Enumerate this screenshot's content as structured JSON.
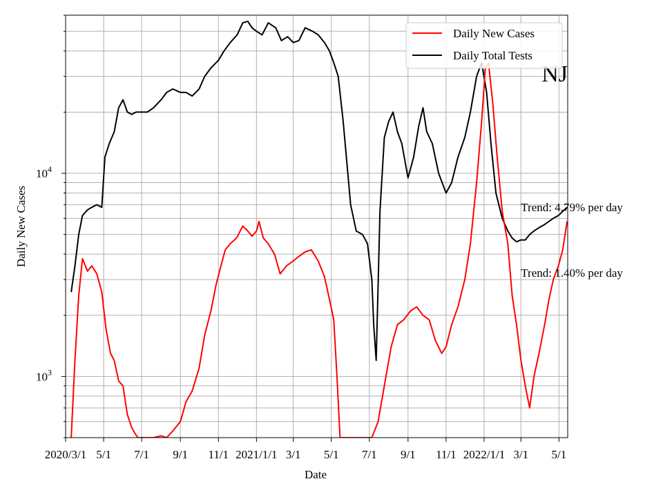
{
  "chart_data": {
    "type": "line",
    "title": "",
    "state_label": "NJ",
    "xlabel": "Date",
    "ylabel": "Daily New Cases",
    "y_scale": "log",
    "ylim": [
      500,
      60000
    ],
    "xlim": [
      "2020-03-01",
      "2022-05-15"
    ],
    "grid": true,
    "legend_position": "top-right",
    "x_ticks": [
      {
        "date": "2020-03-01",
        "label": "2020/3/1"
      },
      {
        "date": "2020-05-01",
        "label": "5/1"
      },
      {
        "date": "2020-07-01",
        "label": "7/1"
      },
      {
        "date": "2020-09-01",
        "label": "9/1"
      },
      {
        "date": "2020-11-01",
        "label": "11/1"
      },
      {
        "date": "2021-01-01",
        "label": "2021/1/1"
      },
      {
        "date": "2021-03-01",
        "label": "3/1"
      },
      {
        "date": "2021-05-01",
        "label": "5/1"
      },
      {
        "date": "2021-07-01",
        "label": "7/1"
      },
      {
        "date": "2021-09-01",
        "label": "9/1"
      },
      {
        "date": "2021-11-01",
        "label": "11/1"
      },
      {
        "date": "2022-01-01",
        "label": "2022/1/1"
      },
      {
        "date": "2022-03-01",
        "label": "3/1"
      },
      {
        "date": "2022-05-01",
        "label": "5/1"
      }
    ],
    "y_ticks": [
      {
        "value": 1000,
        "base": "10",
        "exp": "3"
      },
      {
        "value": 10000,
        "base": "10",
        "exp": "4"
      }
    ],
    "series": [
      {
        "name": "Daily New Cases",
        "color": "#ff0000",
        "x": [
          "2020-03-10",
          "2020-03-16",
          "2020-03-22",
          "2020-03-28",
          "2020-04-05",
          "2020-04-12",
          "2020-04-20",
          "2020-04-28",
          "2020-05-05",
          "2020-05-12",
          "2020-05-18",
          "2020-05-25",
          "2020-06-01",
          "2020-06-08",
          "2020-06-15",
          "2020-06-21",
          "2020-06-25",
          "2020-07-20",
          "2020-08-01",
          "2020-08-10",
          "2020-08-20",
          "2020-09-01",
          "2020-09-10",
          "2020-09-20",
          "2020-10-01",
          "2020-10-10",
          "2020-10-20",
          "2020-10-28",
          "2020-11-05",
          "2020-11-12",
          "2020-11-20",
          "2020-11-30",
          "2020-12-10",
          "2020-12-18",
          "2020-12-25",
          "2021-01-01",
          "2021-01-05",
          "2021-01-12",
          "2021-01-20",
          "2021-01-30",
          "2021-02-08",
          "2021-02-18",
          "2021-03-01",
          "2021-03-10",
          "2021-03-20",
          "2021-03-30",
          "2021-04-10",
          "2021-04-20",
          "2021-04-28",
          "2021-05-05",
          "2021-05-10",
          "2021-05-15",
          "2021-05-20",
          "2021-06-20",
          "2021-07-05",
          "2021-07-15",
          "2021-07-25",
          "2021-08-05",
          "2021-08-15",
          "2021-08-25",
          "2021-09-05",
          "2021-09-15",
          "2021-09-25",
          "2021-10-05",
          "2021-10-15",
          "2021-10-25",
          "2021-11-01",
          "2021-11-10",
          "2021-11-20",
          "2021-12-01",
          "2021-12-10",
          "2021-12-20",
          "2021-12-28",
          "2022-01-03",
          "2022-01-08",
          "2022-01-15",
          "2022-01-22",
          "2022-01-30",
          "2022-02-08",
          "2022-02-15",
          "2022-02-22",
          "2022-03-01",
          "2022-03-08",
          "2022-03-15",
          "2022-03-22",
          "2022-03-30",
          "2022-04-08",
          "2022-04-15",
          "2022-04-22",
          "2022-04-30",
          "2022-05-07",
          "2022-05-14"
        ],
        "values": [
          500,
          1200,
          2500,
          3800,
          3300,
          3500,
          3200,
          2600,
          1700,
          1300,
          1200,
          950,
          900,
          650,
          560,
          520,
          500,
          500,
          510,
          500,
          540,
          600,
          750,
          850,
          1100,
          1600,
          2100,
          2800,
          3500,
          4200,
          4500,
          4800,
          5500,
          5200,
          4900,
          5200,
          5800,
          4800,
          4500,
          4000,
          3200,
          3500,
          3700,
          3900,
          4100,
          4200,
          3700,
          3100,
          2400,
          1900,
          1000,
          500,
          500,
          500,
          500,
          600,
          900,
          1400,
          1800,
          1900,
          2100,
          2200,
          2000,
          1900,
          1500,
          1300,
          1400,
          1800,
          2200,
          3000,
          4500,
          9000,
          18000,
          33000,
          35000,
          22000,
          12000,
          6500,
          4500,
          2500,
          1800,
          1200,
          900,
          700,
          1000,
          1300,
          1800,
          2400,
          3000,
          3500,
          4200,
          5800
        ]
      },
      {
        "name": "Daily Total Tests",
        "color": "#000000",
        "x": [
          "2020-03-10",
          "2020-03-16",
          "2020-03-22",
          "2020-03-28",
          "2020-04-05",
          "2020-04-12",
          "2020-04-20",
          "2020-04-28",
          "2020-05-03",
          "2020-05-10",
          "2020-05-18",
          "2020-05-25",
          "2020-06-01",
          "2020-06-08",
          "2020-06-15",
          "2020-06-22",
          "2020-07-01",
          "2020-07-10",
          "2020-07-20",
          "2020-08-01",
          "2020-08-10",
          "2020-08-20",
          "2020-09-01",
          "2020-09-10",
          "2020-09-20",
          "2020-10-01",
          "2020-10-10",
          "2020-10-20",
          "2020-11-01",
          "2020-11-10",
          "2020-11-20",
          "2020-12-01",
          "2020-12-10",
          "2020-12-18",
          "2020-12-25",
          "2021-01-01",
          "2021-01-10",
          "2021-01-20",
          "2021-02-01",
          "2021-02-10",
          "2021-02-20",
          "2021-03-01",
          "2021-03-10",
          "2021-03-20",
          "2021-04-01",
          "2021-04-10",
          "2021-04-20",
          "2021-04-28",
          "2021-05-05",
          "2021-05-12",
          "2021-05-20",
          "2021-06-01",
          "2021-06-10",
          "2021-06-20",
          "2021-06-28",
          "2021-07-05",
          "2021-07-08",
          "2021-07-12",
          "2021-07-18",
          "2021-07-25",
          "2021-08-01",
          "2021-08-08",
          "2021-08-15",
          "2021-08-22",
          "2021-09-01",
          "2021-09-10",
          "2021-09-18",
          "2021-09-25",
          "2021-10-01",
          "2021-10-10",
          "2021-10-20",
          "2021-11-01",
          "2021-11-10",
          "2021-11-20",
          "2021-12-01",
          "2021-12-10",
          "2021-12-20",
          "2021-12-28",
          "2022-01-05",
          "2022-01-12",
          "2022-01-20",
          "2022-01-30",
          "2022-02-08",
          "2022-02-15",
          "2022-02-22",
          "2022-03-01",
          "2022-03-08",
          "2022-03-15",
          "2022-03-22",
          "2022-03-30",
          "2022-04-08",
          "2022-04-15",
          "2022-04-22",
          "2022-04-30",
          "2022-05-07",
          "2022-05-14"
        ],
        "values": [
          2600,
          3500,
          5000,
          6200,
          6600,
          6800,
          7000,
          6800,
          12000,
          14000,
          16000,
          21000,
          23000,
          20000,
          19500,
          20000,
          20000,
          20000,
          21000,
          23000,
          25000,
          26000,
          25000,
          25000,
          24000,
          26000,
          30000,
          33000,
          36000,
          40000,
          44000,
          48000,
          55000,
          56000,
          52000,
          50000,
          48000,
          55000,
          52000,
          45000,
          47000,
          44000,
          45000,
          52000,
          50000,
          48000,
          44000,
          40000,
          35000,
          30000,
          18000,
          7000,
          5200,
          5000,
          4500,
          3000,
          1800,
          1200,
          6500,
          15000,
          18000,
          20000,
          16000,
          14000,
          9500,
          12000,
          17000,
          21000,
          16000,
          14000,
          10000,
          8000,
          9000,
          12000,
          15000,
          20000,
          30000,
          35000,
          25000,
          14000,
          8000,
          6000,
          5200,
          4800,
          4600,
          4700,
          4700,
          5000,
          5200,
          5400,
          5600,
          5800,
          6000,
          6200,
          6500,
          6800
        ]
      }
    ],
    "annotations": [
      {
        "text": "Trend: 4.79% per day",
        "x": "2022-03-01",
        "y": 6500
      },
      {
        "text": "Trend: 1.40% per day",
        "x": "2022-03-01",
        "y": 3100
      }
    ]
  }
}
